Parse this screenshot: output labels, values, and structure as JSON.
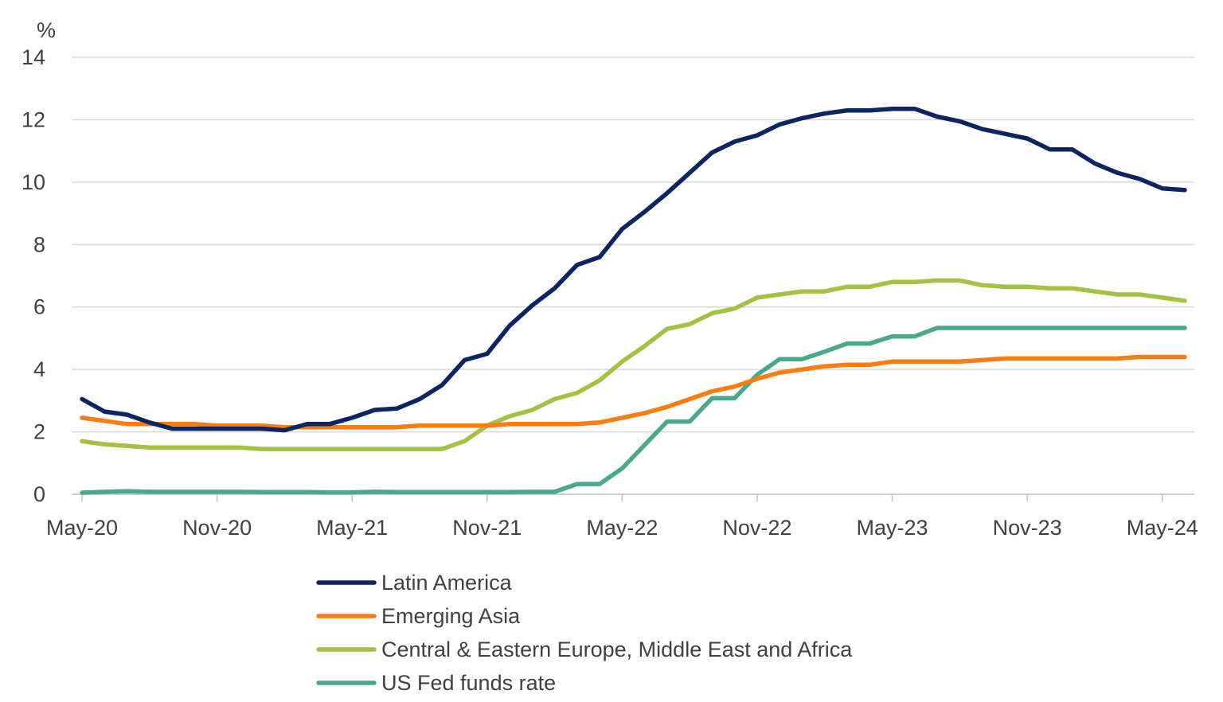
{
  "chart_data": {
    "type": "line",
    "title": "",
    "xlabel": "",
    "ylabel": "%",
    "ylim": [
      0,
      14
    ],
    "yticks": [
      0,
      2,
      4,
      6,
      8,
      10,
      12,
      14
    ],
    "grid": true,
    "legend_position": "bottom",
    "x": [
      "May-20",
      "Jun-20",
      "Jul-20",
      "Aug-20",
      "Sep-20",
      "Oct-20",
      "Nov-20",
      "Dec-20",
      "Jan-21",
      "Feb-21",
      "Mar-21",
      "Apr-21",
      "May-21",
      "Jun-21",
      "Jul-21",
      "Aug-21",
      "Sep-21",
      "Oct-21",
      "Nov-21",
      "Dec-21",
      "Jan-22",
      "Feb-22",
      "Mar-22",
      "Apr-22",
      "May-22",
      "Jun-22",
      "Jul-22",
      "Aug-22",
      "Sep-22",
      "Oct-22",
      "Nov-22",
      "Dec-22",
      "Jan-23",
      "Feb-23",
      "Mar-23",
      "Apr-23",
      "May-23",
      "Jun-23",
      "Jul-23",
      "Aug-23",
      "Sep-23",
      "Oct-23",
      "Nov-23",
      "Dec-23",
      "Jan-24",
      "Feb-24",
      "Mar-24",
      "Apr-24",
      "May-24",
      "Jun-24"
    ],
    "xtick_labels": [
      "May-20",
      "Nov-20",
      "May-21",
      "Nov-21",
      "May-22",
      "Nov-22",
      "May-23",
      "Nov-23",
      "May-24"
    ],
    "series": [
      {
        "name": "Latin America",
        "color": "#0c2461",
        "values": [
          3.05,
          2.65,
          2.55,
          2.3,
          2.1,
          2.1,
          2.1,
          2.1,
          2.1,
          2.05,
          2.25,
          2.25,
          2.45,
          2.7,
          2.75,
          3.05,
          3.5,
          4.3,
          4.5,
          5.4,
          6.05,
          6.6,
          7.35,
          7.6,
          8.5,
          9.05,
          9.65,
          10.3,
          10.95,
          11.3,
          11.5,
          11.85,
          12.05,
          12.2,
          12.3,
          12.3,
          12.35,
          12.35,
          12.1,
          11.95,
          11.7,
          11.55,
          11.4,
          11.05,
          11.05,
          10.6,
          10.3,
          10.1,
          9.8,
          9.75
        ]
      },
      {
        "name": "Emerging Asia",
        "color": "#f97d12",
        "values": [
          2.45,
          2.35,
          2.25,
          2.25,
          2.25,
          2.25,
          2.2,
          2.2,
          2.2,
          2.15,
          2.15,
          2.15,
          2.15,
          2.15,
          2.15,
          2.2,
          2.2,
          2.2,
          2.2,
          2.25,
          2.25,
          2.25,
          2.25,
          2.3,
          2.45,
          2.6,
          2.8,
          3.05,
          3.3,
          3.45,
          3.7,
          3.9,
          4.0,
          4.1,
          4.15,
          4.15,
          4.25,
          4.25,
          4.25,
          4.25,
          4.3,
          4.35,
          4.35,
          4.35,
          4.35,
          4.35,
          4.35,
          4.4,
          4.4,
          4.4
        ]
      },
      {
        "name": "Central & Eastern Europe, Middle East and Africa",
        "color": "#a4c145",
        "values": [
          1.7,
          1.6,
          1.55,
          1.5,
          1.5,
          1.5,
          1.5,
          1.5,
          1.45,
          1.45,
          1.45,
          1.45,
          1.45,
          1.45,
          1.45,
          1.45,
          1.45,
          1.7,
          2.2,
          2.5,
          2.7,
          3.05,
          3.25,
          3.65,
          4.25,
          4.75,
          5.3,
          5.45,
          5.8,
          5.95,
          6.3,
          6.4,
          6.5,
          6.5,
          6.65,
          6.65,
          6.8,
          6.8,
          6.85,
          6.85,
          6.7,
          6.65,
          6.65,
          6.6,
          6.6,
          6.5,
          6.4,
          6.4,
          6.3,
          6.2
        ]
      },
      {
        "name": "US Fed funds rate",
        "color": "#4aa88f",
        "values": [
          0.05,
          0.08,
          0.1,
          0.08,
          0.08,
          0.08,
          0.08,
          0.08,
          0.07,
          0.07,
          0.07,
          0.06,
          0.06,
          0.08,
          0.07,
          0.07,
          0.07,
          0.07,
          0.07,
          0.07,
          0.08,
          0.08,
          0.33,
          0.33,
          0.83,
          1.58,
          2.33,
          2.33,
          3.08,
          3.08,
          3.83,
          4.33,
          4.33,
          4.57,
          4.83,
          4.83,
          5.06,
          5.06,
          5.33,
          5.33,
          5.33,
          5.33,
          5.33,
          5.33,
          5.33,
          5.33,
          5.33,
          5.33,
          5.33,
          5.33
        ]
      }
    ]
  }
}
